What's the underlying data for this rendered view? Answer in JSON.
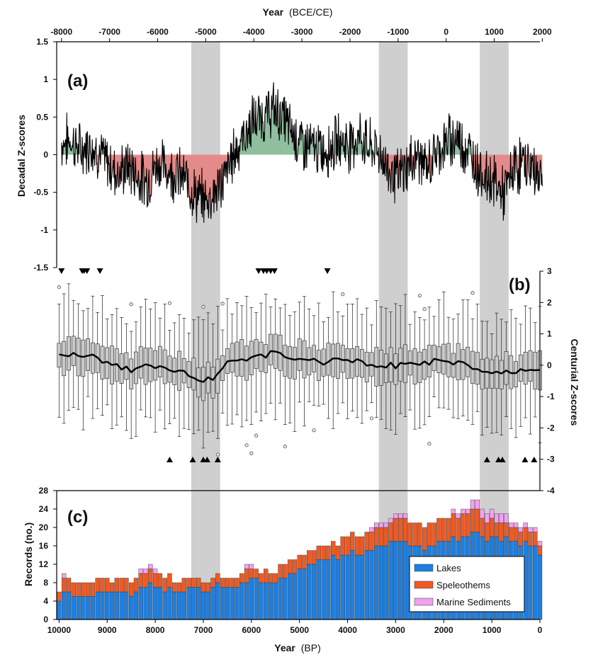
{
  "figure": {
    "top_axis_title": "Year",
    "top_axis_unit": "(BCE/CE)",
    "bottom_axis_title": "Year",
    "bottom_axis_unit": "(BP)"
  },
  "chart_data": [
    {
      "panel": "(a)",
      "type": "area",
      "ylabel": "Decadal Z-scores",
      "xlabel": "Year (BCE/CE)",
      "xlim": [
        -8050,
        2000
      ],
      "ylim": [
        -1.5,
        1.5
      ],
      "yticks": [
        -1.5,
        -1,
        -0.5,
        0,
        0.5,
        1,
        1.5
      ],
      "ytick_labels": [
        "-1.5",
        "-1",
        "-0.5",
        "0",
        "0.5",
        "1",
        "1.5"
      ],
      "xticks": [
        -8000,
        -7000,
        -6000,
        -5000,
        -4000,
        -3000,
        -2000,
        -1000,
        0,
        1000,
        2000
      ],
      "xtick_labels": [
        "-8000",
        "-7000",
        "-6000",
        "-5000",
        "-4000",
        "-3000",
        "-2000",
        "-1000",
        "0",
        "1000",
        "2000"
      ],
      "fill_colors": {
        "positive": "#8fbf9f",
        "negative": "#e58a8a"
      },
      "series_approx": {
        "x": [
          -8000,
          -7800,
          -7600,
          -7400,
          -7200,
          -7000,
          -6800,
          -6600,
          -6400,
          -6200,
          -6000,
          -5800,
          -5600,
          -5400,
          -5200,
          -5000,
          -4800,
          -4600,
          -4400,
          -4200,
          -4000,
          -3800,
          -3600,
          -3400,
          -3200,
          -3000,
          -2800,
          -2600,
          -2400,
          -2200,
          -2000,
          -1800,
          -1600,
          -1400,
          -1200,
          -1000,
          -800,
          -600,
          -400,
          -200,
          0,
          200,
          400,
          600,
          800,
          1000,
          1200,
          1400,
          1600,
          1800,
          2000
        ],
        "y": [
          0.15,
          0.2,
          0.05,
          0.15,
          0.0,
          -0.15,
          -0.25,
          -0.15,
          -0.3,
          -0.35,
          -0.1,
          -0.2,
          -0.25,
          -0.35,
          -0.55,
          -0.6,
          -0.5,
          -0.3,
          0.05,
          0.25,
          0.45,
          0.5,
          0.6,
          0.5,
          0.3,
          0.15,
          0.1,
          0.05,
          0.1,
          0.2,
          0.15,
          0.25,
          0.1,
          0.05,
          -0.2,
          -0.3,
          -0.15,
          0.0,
          -0.2,
          0.05,
          0.15,
          0.25,
          0.1,
          -0.1,
          -0.3,
          -0.35,
          -0.55,
          -0.2,
          -0.1,
          -0.2,
          -0.3
        ]
      }
    },
    {
      "panel": "(b)",
      "type": "box",
      "ylabel": "Centurial Z-scores",
      "xlabel": "Year (BP)",
      "xlim": [
        10050,
        0
      ],
      "ylim": [
        -4,
        3
      ],
      "yticks": [
        -4,
        -3,
        -2,
        -1,
        0,
        1,
        2,
        3
      ],
      "ytick_labels": [
        "-4",
        "-3",
        "-2",
        "-1",
        "0",
        "1",
        "2",
        "3"
      ],
      "median_approx": {
        "x": [
          10000,
          9500,
          9000,
          8500,
          8000,
          7500,
          7000,
          6800,
          6500,
          6000,
          5500,
          5000,
          4500,
          4000,
          3500,
          3000,
          2500,
          2000,
          1500,
          1000,
          500,
          0
        ],
        "y": [
          0.3,
          0.35,
          0.1,
          -0.15,
          0.0,
          -0.2,
          -0.55,
          -0.4,
          0.1,
          0.25,
          0.4,
          0.2,
          0.1,
          0.15,
          0.05,
          0.0,
          0.05,
          0.15,
          0.0,
          -0.3,
          -0.2,
          -0.25
        ]
      },
      "down_markers_BP": [
        9950,
        9520,
        9480,
        9420,
        9150,
        5850,
        5750,
        5680,
        5600,
        5520,
        4420
      ],
      "up_markers_BP": [
        7700,
        7220,
        7000,
        6920,
        6700,
        1100,
        860,
        780,
        310,
        120
      ]
    },
    {
      "panel": "(c)",
      "type": "bar",
      "stacked": true,
      "ylabel": "Records (no.)",
      "xlabel": "Year (BP)",
      "xlim": [
        10050,
        0
      ],
      "ylim": [
        0,
        28
      ],
      "yticks": [
        0,
        4,
        8,
        12,
        16,
        20,
        24,
        28
      ],
      "ytick_labels": [
        "0",
        "4",
        "8",
        "12",
        "16",
        "20",
        "24",
        "28"
      ],
      "xticks": [
        10000,
        9000,
        8000,
        7000,
        6000,
        5000,
        4000,
        3000,
        2000,
        1000,
        0
      ],
      "xtick_labels": [
        "10000",
        "9000",
        "8000",
        "7000",
        "6000",
        "5000",
        "4000",
        "3000",
        "2000",
        "1000",
        "0"
      ],
      "bin_width_years": 100,
      "bin_start_BP": 10000,
      "series": [
        {
          "name": "Lakes",
          "color": "#1e7fe0",
          "values": [
            4,
            6,
            6,
            5,
            5,
            5,
            5,
            5,
            6,
            6,
            6,
            6,
            6,
            6,
            6,
            5,
            6,
            7,
            7,
            8,
            7,
            7,
            6,
            7,
            6,
            6,
            6,
            7,
            7,
            7,
            6,
            6,
            7,
            8,
            7,
            7,
            7,
            7,
            8,
            8,
            9,
            9,
            8,
            8,
            8,
            8,
            9,
            9,
            10,
            10,
            11,
            11,
            12,
            12,
            13,
            13,
            13,
            14,
            13,
            14,
            14,
            15,
            14,
            14,
            15,
            15,
            16,
            16,
            16,
            17,
            17,
            17,
            17,
            16,
            16,
            16,
            15,
            16,
            16,
            17,
            17,
            17,
            18,
            17,
            18,
            18,
            19,
            19,
            18,
            17,
            18,
            18,
            17,
            18,
            17,
            17,
            16,
            17,
            16,
            16,
            14
          ]
        },
        {
          "name": "Speleothems",
          "color": "#ee5a24",
          "values": [
            2,
            3,
            3,
            3,
            3,
            3,
            3,
            3,
            3,
            3,
            3,
            2,
            3,
            3,
            3,
            3,
            3,
            3,
            3,
            3,
            3,
            3,
            3,
            3,
            2,
            2,
            3,
            2,
            2,
            2,
            2,
            2,
            2,
            2,
            2,
            2,
            2,
            2,
            2,
            3,
            2,
            2,
            2,
            3,
            2,
            2,
            3,
            3,
            3,
            3,
            3,
            3,
            3,
            3,
            3,
            3,
            3,
            3,
            3,
            4,
            4,
            4,
            4,
            4,
            4,
            4,
            4,
            4,
            4,
            4,
            5,
            5,
            5,
            5,
            5,
            5,
            5,
            5,
            5,
            5,
            5,
            5,
            5,
            5,
            5,
            5,
            5,
            5,
            4,
            4,
            4,
            3,
            4,
            3,
            3,
            3,
            3,
            3,
            3,
            3,
            2
          ]
        },
        {
          "name": "Marine Sediments",
          "color": "#f2a1f0",
          "values": [
            0,
            1,
            0,
            0,
            0,
            0,
            0,
            0,
            0,
            0,
            0,
            0,
            0,
            0,
            0,
            0,
            0,
            1,
            1,
            1,
            1,
            0,
            0,
            0,
            0,
            0,
            0,
            0,
            0,
            0,
            0,
            0,
            0,
            0,
            0,
            0,
            0,
            0,
            0,
            1,
            1,
            0,
            0,
            0,
            0,
            0,
            0,
            0,
            0,
            0,
            0,
            0,
            0,
            0,
            0,
            0,
            0,
            0,
            0,
            0,
            0,
            0,
            0,
            0,
            0,
            1,
            1,
            1,
            1,
            1,
            1,
            1,
            1,
            0,
            0,
            0,
            0,
            0,
            0,
            0,
            0,
            0,
            1,
            1,
            1,
            1,
            2,
            2,
            2,
            2,
            2,
            2,
            2,
            2,
            1,
            1,
            1,
            1,
            1,
            1,
            1
          ]
        }
      ],
      "legend": {
        "position": "bottom-right",
        "entries": [
          "Lakes",
          "Speleothems",
          "Marine Sediments"
        ]
      }
    }
  ],
  "shaded_bands_BP": [
    [
      7250,
      6650
    ],
    [
      3350,
      2750
    ],
    [
      1250,
      650
    ]
  ],
  "colors": {
    "band": "#cfcfcf",
    "line": "#000000"
  }
}
